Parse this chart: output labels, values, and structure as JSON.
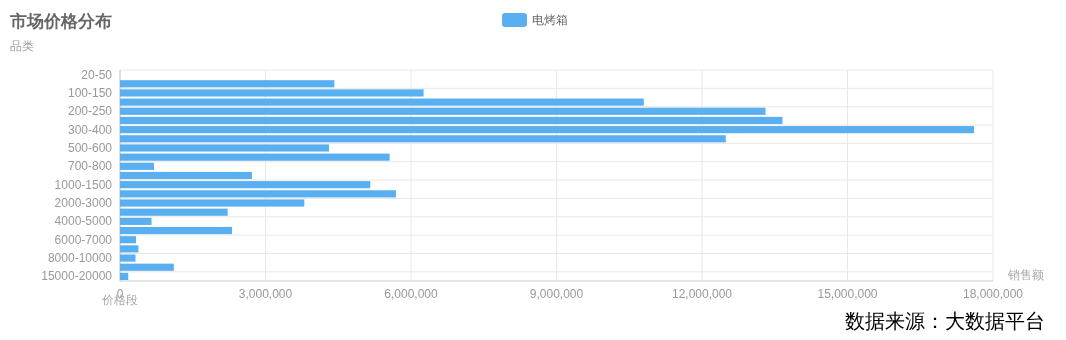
{
  "chart_data": {
    "type": "bar",
    "orientation": "horizontal",
    "title": "市场价格分布",
    "subtitle": "品类",
    "xlabel": "销售额",
    "ylabel": "价格段",
    "categories": [
      "20-50",
      null,
      "100-150",
      null,
      "200-250",
      null,
      "300-400",
      null,
      "500-600",
      null,
      "700-800",
      null,
      "1000-1500",
      null,
      "2000-3000",
      null,
      "4000-5000",
      null,
      "6000-7000",
      null,
      "8000-10000",
      null,
      "15000-20000"
    ],
    "series": [
      {
        "name": "电烤箱",
        "color": "#5aaff0",
        "values": [
          0,
          4420000,
          6260000,
          10800000,
          13310000,
          13660000,
          17610000,
          12490000,
          4310000,
          5560000,
          700000,
          2720000,
          5160000,
          5690000,
          3800000,
          2220000,
          650000,
          2310000,
          330000,
          380000,
          320000,
          1110000,
          170000
        ]
      }
    ],
    "xlim": [
      0,
      18000000
    ],
    "xticks": [
      {
        "value": 0,
        "label": "0"
      },
      {
        "value": 3000000,
        "label": "3,000,000"
      },
      {
        "value": 6000000,
        "label": "6,000,000"
      },
      {
        "value": 9000000,
        "label": "9,000,000"
      },
      {
        "value": 12000000,
        "label": "12,000,000"
      },
      {
        "value": 15000000,
        "label": "15,000,000"
      },
      {
        "value": 18000000,
        "label": "18,000,000"
      }
    ],
    "grid": true,
    "legend": "top",
    "annotations": [
      "数据来源：大数据平台"
    ]
  }
}
